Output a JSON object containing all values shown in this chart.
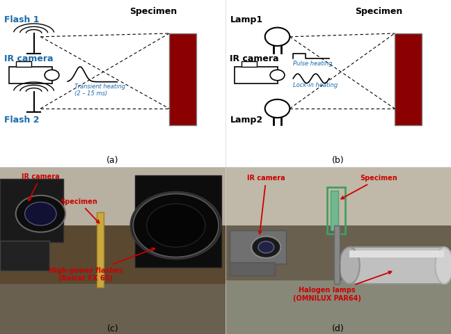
{
  "figsize": [
    6.48,
    4.8
  ],
  "dpi": 100,
  "bg_color": "#ffffff",
  "specimen_color": "#8B0000",
  "flash_text_color": "#1a6aab",
  "transient_text_color": "#1a6aab",
  "subplot_labels": [
    "(a)",
    "(b)",
    "(c)",
    "(d)"
  ],
  "panel_a": {
    "flash1_label": "Flash 1",
    "flash2_label": "Flash 2",
    "ir_label": "IR camera",
    "specimen_label": "Specimen",
    "transient_label": "Transient heating\n(2 – 15 ms)"
  },
  "panel_b": {
    "lamp1_label": "Lamp1",
    "lamp2_label": "Lamp2",
    "ir_label": "IR camera",
    "specimen_label": "Specimen",
    "pulse_label": "Pulse heating",
    "lockin_label": "Lock-in heating"
  }
}
